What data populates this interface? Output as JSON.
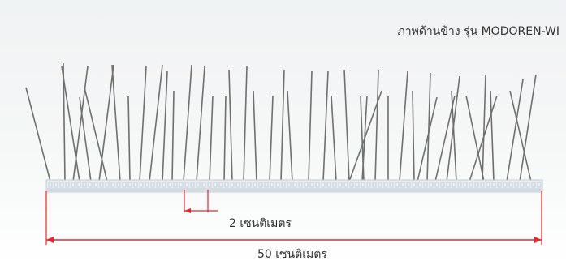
{
  "caption": "ภาพด้านข้าง รุ่น MODOREN-WI",
  "dim_small_label": "2 เซนติเมตร",
  "dim_total_label": "50 เซนติเมตร",
  "colors": {
    "background": "#f3f4f5",
    "base_strip": "#e8eef4",
    "spike": "#6f6f6f",
    "dimension_line": "#e8262c"
  }
}
